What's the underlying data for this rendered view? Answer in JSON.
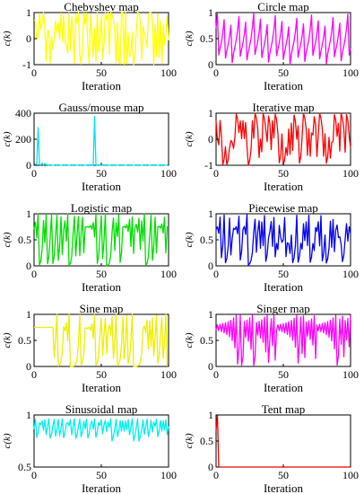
{
  "chart_data": [
    {
      "type": "line",
      "title": "Chebyshev map",
      "xlabel": "Iteration",
      "ylabel": "c(k)",
      "xlim": [
        0,
        100
      ],
      "ylim": [
        -1,
        1
      ],
      "yticks": [
        "-1",
        "0",
        "1"
      ],
      "xticks": [
        "0",
        "50",
        "100"
      ],
      "color": "#ffff00",
      "gen": "chebyshev",
      "x0": 0.7
    },
    {
      "type": "line",
      "title": "Circle map",
      "xlabel": "Iteration",
      "ylabel": "c(k)",
      "xlim": [
        0,
        100
      ],
      "ylim": [
        0,
        1
      ],
      "yticks": [
        "0",
        "0.5",
        "1"
      ],
      "xticks": [
        "0",
        "50",
        "100"
      ],
      "color": "#ff00ff",
      "gen": "circle",
      "x0": 0.7
    },
    {
      "type": "line",
      "title": "Gauss/mouse map",
      "xlabel": "Iteration",
      "ylabel": "c(k)",
      "xlim": [
        0,
        100
      ],
      "ylim": [
        0,
        400
      ],
      "yticks": [
        "0",
        "200",
        "400"
      ],
      "xticks": [
        "0",
        "50",
        "100"
      ],
      "color": "#00e5ee",
      "gen": "gauss",
      "x0": 0.7
    },
    {
      "type": "line",
      "title": "Iterative map",
      "xlabel": "Iteration",
      "ylabel": "c(k)",
      "xlim": [
        0,
        100
      ],
      "ylim": [
        -1,
        1
      ],
      "yticks": [
        "-1",
        "0",
        "1"
      ],
      "xticks": [
        "0",
        "50",
        "100"
      ],
      "color": "#ff0000",
      "gen": "iterative",
      "x0": 0.7
    },
    {
      "type": "line",
      "title": "Logistic map",
      "xlabel": "Iteration",
      "ylabel": "c(k)",
      "xlim": [
        0,
        100
      ],
      "ylim": [
        0,
        1
      ],
      "yticks": [
        "0",
        "0.5",
        "1"
      ],
      "xticks": [
        "0",
        "50",
        "100"
      ],
      "color": "#00dd00",
      "gen": "logistic",
      "x0": 0.7
    },
    {
      "type": "line",
      "title": "Piecewise map",
      "xlabel": "Iteration",
      "ylabel": "c(k)",
      "xlim": [
        0,
        100
      ],
      "ylim": [
        0,
        1
      ],
      "yticks": [
        "0",
        "0.5",
        "1"
      ],
      "xticks": [
        "0",
        "50",
        "100"
      ],
      "color": "#0000ee",
      "gen": "piecewise",
      "x0": 0.7
    },
    {
      "type": "line",
      "title": "Sine map",
      "xlabel": "Iteration",
      "ylabel": "c(k)",
      "xlim": [
        0,
        100
      ],
      "ylim": [
        0,
        1
      ],
      "yticks": [
        "0",
        "0.5",
        "1"
      ],
      "xticks": [
        "0",
        "50",
        "100"
      ],
      "color": "#eeee00",
      "gen": "sine",
      "x0": 0.7
    },
    {
      "type": "line",
      "title": "Singer map",
      "xlabel": "Iteration",
      "ylabel": "c(k)",
      "xlim": [
        0,
        100
      ],
      "ylim": [
        0,
        1
      ],
      "yticks": [
        "0",
        "0.5",
        "1"
      ],
      "xticks": [
        "0",
        "50",
        "100"
      ],
      "color": "#ff00ff",
      "gen": "singer",
      "x0": 0.7
    },
    {
      "type": "line",
      "title": "Sinusoidal map",
      "xlabel": "Iteration",
      "ylabel": "c(k)",
      "xlim": [
        0,
        100
      ],
      "ylim": [
        0.5,
        1
      ],
      "yticks": [
        "0.5",
        "1"
      ],
      "xticks": [
        "0",
        "50",
        "100"
      ],
      "color": "#00eeee",
      "gen": "sinusoidal",
      "x0": 0.7
    },
    {
      "type": "line",
      "title": "Tent map",
      "xlabel": "Iteration",
      "ylabel": "c(k)",
      "xlim": [
        0,
        100
      ],
      "ylim": [
        0,
        1
      ],
      "yticks": [
        "0",
        "0.5",
        "1"
      ],
      "xticks": [
        "0",
        "50",
        "100"
      ],
      "color": "#ee0000",
      "gen": "tent",
      "x0": 0.7
    }
  ]
}
